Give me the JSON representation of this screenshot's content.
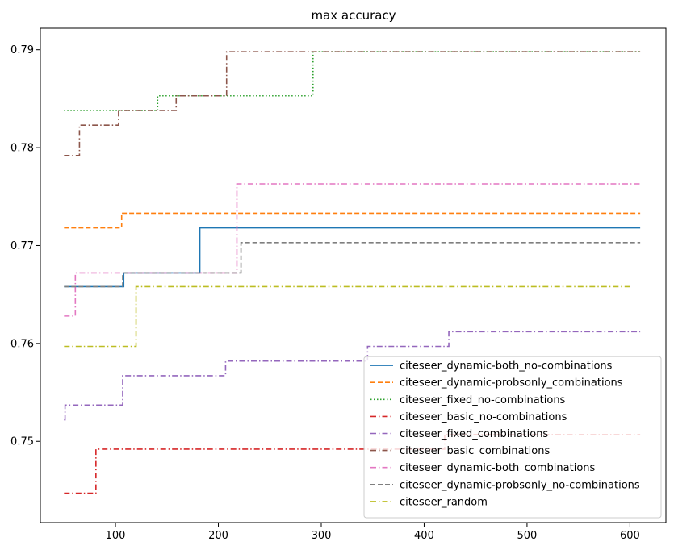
{
  "chart_data": {
    "type": "line",
    "title": "max accuracy",
    "xlabel": "",
    "ylabel": "",
    "xlim": [
      27,
      635
    ],
    "ylim": [
      0.7417,
      0.7922
    ],
    "x_ticks": [
      100,
      200,
      300,
      400,
      500,
      600
    ],
    "x_tick_labels": [
      "100",
      "200",
      "300",
      "400",
      "500",
      "600"
    ],
    "y_ticks": [
      0.75,
      0.76,
      0.77,
      0.78,
      0.79
    ],
    "y_tick_labels": [
      "0.75",
      "0.76",
      "0.77",
      "0.78",
      "0.79"
    ],
    "grid": false,
    "legend_position": "lower-right",
    "series": [
      {
        "name": "citeseer_dynamic-both_no-combinations",
        "color": "#1f77b4",
        "dash": "solid",
        "steps": [
          [
            50,
            0.7658
          ],
          [
            108,
            0.7672
          ],
          [
            182,
            0.7718
          ],
          [
            610,
            0.7718
          ]
        ]
      },
      {
        "name": "citeseer_dynamic-probsonly_combinations",
        "color": "#ff7f0e",
        "dash": "dashed",
        "steps": [
          [
            50,
            0.7718
          ],
          [
            106,
            0.7733
          ],
          [
            610,
            0.7733
          ]
        ]
      },
      {
        "name": "citeseer_fixed_no-combinations",
        "color": "#2ca02c",
        "dash": "dotted",
        "steps": [
          [
            50,
            0.7838
          ],
          [
            141,
            0.7853
          ],
          [
            292,
            0.7898
          ],
          [
            610,
            0.7898
          ]
        ]
      },
      {
        "name": "citeseer_basic_no-combinations",
        "color": "#d62728",
        "dash": "dashdot",
        "steps": [
          [
            50,
            0.7447
          ],
          [
            81,
            0.7492
          ],
          [
            344,
            0.7492
          ],
          [
            420,
            0.7507
          ],
          [
            610,
            0.7507
          ]
        ]
      },
      {
        "name": "citeseer_fixed_combinations",
        "color": "#9467bd",
        "dash": "dashdot",
        "steps": [
          [
            50,
            0.7522
          ],
          [
            51,
            0.7537
          ],
          [
            107,
            0.7567
          ],
          [
            207,
            0.7582
          ],
          [
            345,
            0.7597
          ],
          [
            424,
            0.7612
          ],
          [
            610,
            0.7612
          ]
        ]
      },
      {
        "name": "citeseer_basic_combinations",
        "color": "#8c564b",
        "dash": "dashdot",
        "steps": [
          [
            50,
            0.7792
          ],
          [
            65,
            0.7823
          ],
          [
            103,
            0.7838
          ],
          [
            159,
            0.7853
          ],
          [
            208,
            0.7898
          ],
          [
            610,
            0.7898
          ]
        ]
      },
      {
        "name": "citeseer_dynamic-both_combinations",
        "color": "#e377c2",
        "dash": "dashdot",
        "steps": [
          [
            50,
            0.7628
          ],
          [
            61,
            0.7672
          ],
          [
            218,
            0.7763
          ],
          [
            610,
            0.7763
          ]
        ]
      },
      {
        "name": "citeseer_dynamic-probsonly_no-combinations",
        "color": "#7f7f7f",
        "dash": "dashed",
        "steps": [
          [
            50,
            0.7658
          ],
          [
            107,
            0.7672
          ],
          [
            222,
            0.7703
          ],
          [
            610,
            0.7703
          ]
        ]
      },
      {
        "name": "citeseer_random",
        "color": "#bcbd22",
        "dash": "dashdot",
        "steps": [
          [
            50,
            0.7597
          ],
          [
            120,
            0.7658
          ],
          [
            600,
            0.7658
          ]
        ]
      }
    ]
  }
}
